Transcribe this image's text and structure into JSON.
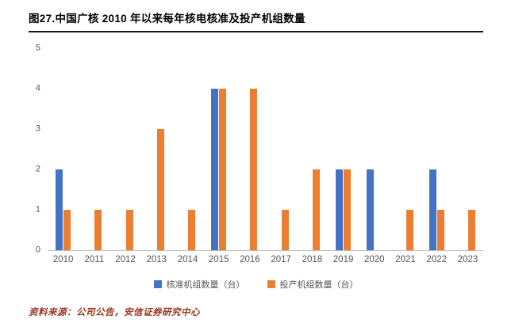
{
  "header": {
    "title": "图27.中国广核 2010 年以来每年核电核准及投产机组数量"
  },
  "chart_data": {
    "type": "bar",
    "title": "中国广核 2010 年以来每年核电核准及投产机组数量",
    "categories": [
      "2010",
      "2011",
      "2012",
      "2013",
      "2014",
      "2015",
      "2016",
      "2017",
      "2018",
      "2019",
      "2020",
      "2021",
      "2022",
      "2023"
    ],
    "series": [
      {
        "name": "核准机组数量（台）",
        "color": "#4472C4",
        "values": [
          2,
          0,
          0,
          0,
          0,
          4,
          0,
          0,
          0,
          2,
          2,
          0,
          2,
          0
        ]
      },
      {
        "name": "投产机组数量（台）",
        "color": "#ED7D31",
        "values": [
          1,
          1,
          1,
          3,
          1,
          4,
          4,
          1,
          2,
          2,
          0,
          1,
          1,
          1
        ]
      }
    ],
    "xlabel": "",
    "ylabel": "",
    "ylim": [
      0,
      5
    ],
    "yticks": [
      0,
      1,
      2,
      3,
      4,
      5
    ],
    "grid": false,
    "legend_position": "bottom"
  },
  "footer": {
    "source": "资料来源：公司公告，安信证券研究中心"
  },
  "colors": {
    "series_approved": "#4472C4",
    "series_commissioned": "#ED7D31",
    "source_text": "#97361F",
    "axis_line": "#bdbdbd"
  }
}
